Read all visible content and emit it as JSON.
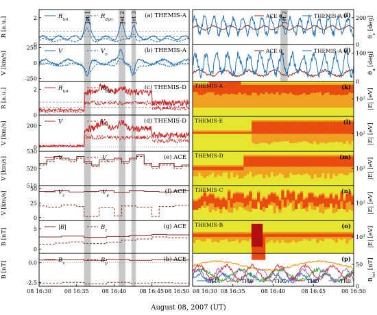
{
  "figure": {
    "xlabel": "August 08, 2007 (UT)",
    "time_ticks": [
      "08 16:30",
      "08 16:35",
      "08 16:40",
      "08 16:45",
      "08 16:50"
    ],
    "time_range_min": [
      0,
      20
    ],
    "jets": [
      {
        "label": "Jet 1",
        "start_min": 6.0,
        "end_min": 6.9
      },
      {
        "label": "Jet 2",
        "start_min": 10.6,
        "end_min": 11.5
      },
      {
        "label": "Jet 3",
        "start_min": 12.3,
        "end_min": 12.9
      }
    ],
    "right_jet": {
      "label": "Jet 2",
      "start_min": 10.9,
      "end_min": 11.8
    },
    "colors": {
      "blue": "#1f6fb5",
      "red": "#cc2222",
      "brown": "#8b2a1f",
      "shade": "#c8c8c8",
      "spec_bg": "#e6e630",
      "spec_mid": "#f0a020",
      "spec_hi": "#e84a10",
      "spec_dark": "#b01010"
    }
  },
  "chart_data": [
    {
      "type": "line",
      "panel": "a",
      "label": "(a) THEMIS-A",
      "ylabel": "R [a.u.]",
      "yticks": [
        "2",
        "0"
      ],
      "ylim": [
        0,
        2.6
      ],
      "series": [
        {
          "name": "R_tot",
          "style": "solid",
          "color": "blue"
        },
        {
          "name": "R_dyn",
          "style": "dashed",
          "color": "blue"
        }
      ],
      "reference_lines": [
        1.0,
        0.6
      ]
    },
    {
      "type": "line",
      "panel": "b",
      "label": "(b) THEMIS-A",
      "ylabel": "V [km/s]",
      "yticks": [
        "250",
        "0",
        "-250"
      ],
      "ylim": [
        -300,
        300
      ],
      "series": [
        {
          "name": "V",
          "style": "solid",
          "color": "blue"
        },
        {
          "name": "V_n",
          "style": "dashed",
          "color": "blue"
        }
      ]
    },
    {
      "type": "line",
      "panel": "c",
      "label": "(c) THEMIS-D",
      "ylabel": "R [a.u.]",
      "yticks": [
        "2",
        "0"
      ],
      "ylim": [
        0,
        2.6
      ],
      "series": [
        {
          "name": "R_tot",
          "style": "solid",
          "color": "red"
        },
        {
          "name": "R_dyn",
          "style": "dashed",
          "color": "red"
        }
      ],
      "reference_lines": [
        1.0,
        0.6
      ]
    },
    {
      "type": "line",
      "panel": "d",
      "label": "(d) THEMIS-D",
      "ylabel": "V [km/s]",
      "yticks": [
        "200",
        "0"
      ],
      "ylim": [
        -40,
        300
      ],
      "series": [
        {
          "name": "V",
          "style": "solid",
          "color": "red"
        },
        {
          "name": "V_n",
          "style": "dashed",
          "color": "red"
        }
      ]
    },
    {
      "type": "line",
      "panel": "e",
      "label": "(e) ACE",
      "ylabel": "V [km/s]",
      "yticks": [
        "530",
        "520",
        "510"
      ],
      "ylim": [
        510,
        530
      ],
      "series": [
        {
          "name": "V",
          "style": "solid",
          "color": "brown"
        },
        {
          "name": "-V_x",
          "style": "dashed",
          "color": "brown"
        }
      ]
    },
    {
      "type": "line",
      "panel": "f",
      "label": "(f) ACE",
      "ylabel": "V [km/s]",
      "yticks": [
        "50",
        "25",
        "0"
      ],
      "ylim": [
        -5,
        55
      ],
      "series": [
        {
          "name": "V_z",
          "style": "solid",
          "color": "brown"
        },
        {
          "name": "-V_y",
          "style": "dashed",
          "color": "brown"
        }
      ]
    },
    {
      "type": "line",
      "panel": "g",
      "label": "(g) ACE",
      "ylabel": "B [nT]",
      "yticks": [
        "5",
        "0"
      ],
      "ylim": [
        -1,
        7
      ],
      "series": [
        {
          "name": "|B|",
          "style": "solid",
          "color": "brown"
        },
        {
          "name": "B_z",
          "style": "dashed",
          "color": "brown"
        }
      ]
    },
    {
      "type": "line",
      "panel": "h",
      "label": "(h) ACE",
      "ylabel": "B [nT]",
      "yticks": [
        "0.0",
        "-2.5"
      ],
      "ylim": [
        -3,
        1.2
      ],
      "series": [
        {
          "name": "B_x",
          "style": "solid",
          "color": "brown"
        },
        {
          "name": "B_y",
          "style": "dashed",
          "color": "brown"
        }
      ]
    },
    {
      "type": "line",
      "panel": "i",
      "label": "(i)",
      "ylabel": "θ_c [deg]",
      "yticks": [
        "200",
        "0"
      ],
      "ylim": [
        0,
        260
      ],
      "series": [
        {
          "name": "ACE θ_c",
          "style": "solid",
          "color": "brown"
        },
        {
          "name": "THEMIS-A θ_c",
          "style": "solid",
          "color": "blue"
        }
      ]
    },
    {
      "type": "line",
      "panel": "j",
      "label": "(j)",
      "ylabel": "θ_a [deg]",
      "yticks": [
        "100",
        "0"
      ],
      "ylim": [
        0,
        130
      ],
      "series": [
        {
          "name": "ACE θ_a",
          "style": "solid",
          "color": "brown"
        },
        {
          "name": "THEMIS-A θ_a",
          "style": "solid",
          "color": "blue"
        }
      ]
    },
    {
      "type": "heatmap",
      "panel": "k",
      "label": "(k)",
      "probe": "THEMIS-A",
      "ylabel": "|E| [eV]",
      "ytick": "10^3"
    },
    {
      "type": "heatmap",
      "panel": "l",
      "label": "(l)",
      "probe": "THEMIS-E",
      "ylabel": "|E| [eV]",
      "ytick": "10^3"
    },
    {
      "type": "heatmap",
      "panel": "m",
      "label": "(m)",
      "probe": "THEMIS-D",
      "ylabel": "|E| [eV]",
      "ytick": "10^3"
    },
    {
      "type": "heatmap",
      "panel": "n",
      "label": "(n)",
      "probe": "THEMIS-C",
      "ylabel": "|E| [eV]",
      "ytick": "10^3"
    },
    {
      "type": "heatmap",
      "panel": "o",
      "label": "(o)",
      "probe": "THEMIS-B",
      "ylabel": "|E| [eV]",
      "ytick": "10^3"
    },
    {
      "type": "line",
      "panel": "p",
      "label": "(p)",
      "ylabel": "B_tot [nT]",
      "yticks": [
        "50",
        "0"
      ],
      "ylim": [
        0,
        75
      ],
      "series": [
        {
          "name": "THA",
          "color": "#1f6fb5"
        },
        {
          "name": "THB",
          "color": "#ff8c00"
        },
        {
          "name": "THC",
          "color": "#2ca02c"
        },
        {
          "name": "THD",
          "color": "#d62728"
        },
        {
          "name": "THE",
          "color": "#9467bd"
        }
      ]
    }
  ]
}
